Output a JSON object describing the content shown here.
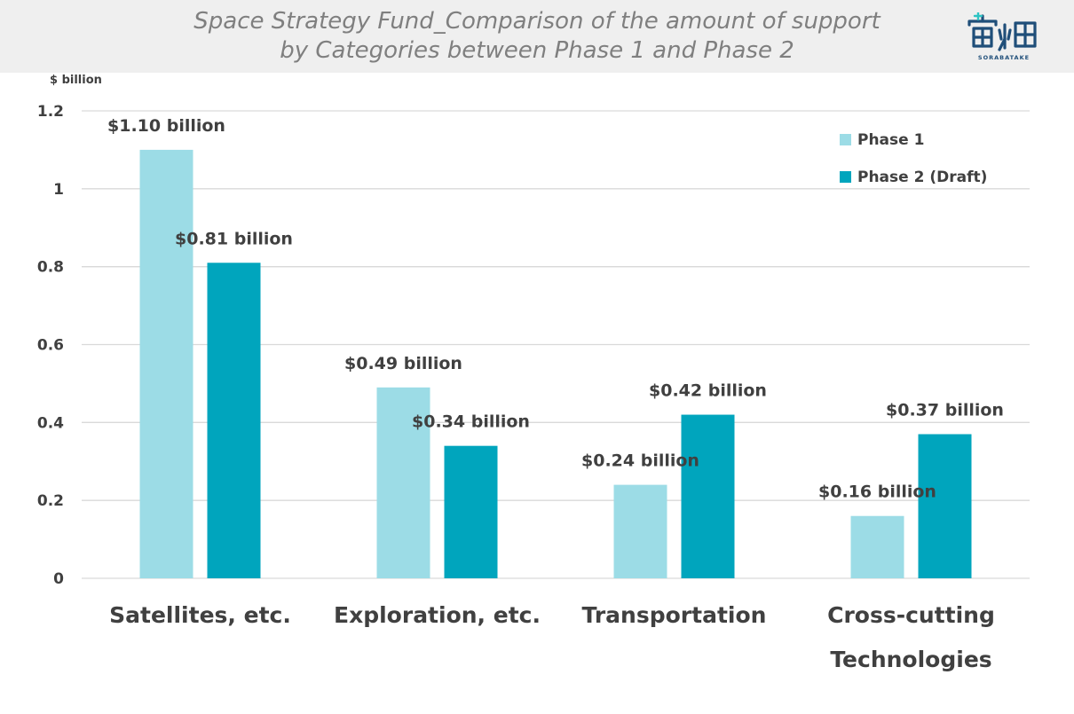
{
  "title_line1": "Space Strategy Fund_Comparison of the amount of support",
  "title_line2": "by Categories between Phase 1 and Phase 2",
  "logo": {
    "text": "SORABATAKE",
    "icon": "sorabatake-logo-icon"
  },
  "colors": {
    "phase1": "#9cdce6",
    "phase2": "#00a5bd",
    "grid": "#d9d9d9",
    "text": "#404040",
    "title": "#7f7f7f",
    "header_bg": "#efefef"
  },
  "chart_data": {
    "type": "bar",
    "ylabel": "$ billion",
    "ylim": [
      0,
      1.2
    ],
    "yticks": [
      "0",
      "0.2",
      "0.4",
      "0.6",
      "0.8",
      "1",
      "1.2"
    ],
    "ytick_values": [
      0,
      0.2,
      0.4,
      0.6,
      0.8,
      1,
      1.2
    ],
    "categories": [
      [
        "Satellites, etc."
      ],
      [
        "Exploration, etc."
      ],
      [
        "Transportation"
      ],
      [
        "Cross-cutting",
        "Technologies"
      ]
    ],
    "series": [
      {
        "name": "Phase 1",
        "values": [
          1.1,
          0.49,
          0.24,
          0.16
        ],
        "labels": [
          "$1.10 billion",
          "$0.49 billion",
          "$0.24 billion",
          "$0.16 billion"
        ]
      },
      {
        "name": "Phase 2 (Draft)",
        "values": [
          0.81,
          0.34,
          0.42,
          0.37
        ],
        "labels": [
          "$0.81 billion",
          "$0.34 billion",
          "$0.42 billion",
          "$0.37 billion"
        ]
      }
    ],
    "grid": true,
    "legend": "top-right"
  }
}
